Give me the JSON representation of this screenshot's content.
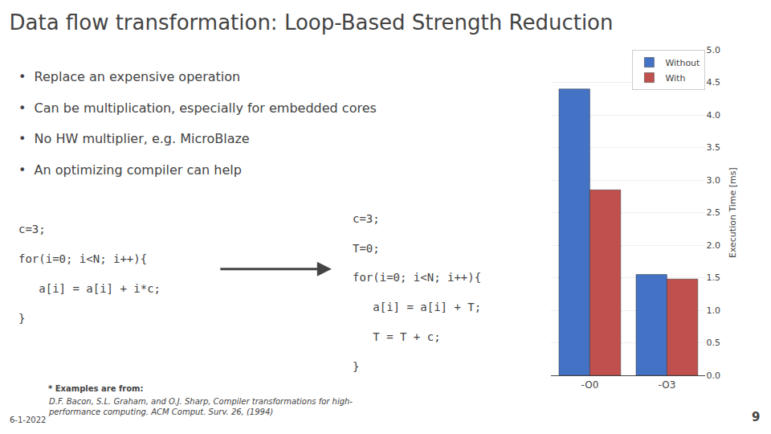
{
  "chart_data": {
    "type": "bar",
    "title": "Data flow transformation: Loop-Based Strength Reduction",
    "categories": [
      "-O0",
      "-O3"
    ],
    "series": [
      {
        "name": "Without",
        "color": "#4472C4",
        "values": [
          4.4,
          1.55
        ]
      },
      {
        "name": "With",
        "color": "#C0504D",
        "values": [
          2.85,
          1.48
        ]
      }
    ],
    "ylabel": "Execution Time [ms]",
    "ylim": [
      0,
      5
    ],
    "yticks": [
      {
        "value": 0,
        "label": "0.0"
      },
      0.5,
      {
        "value": 1,
        "label": "1.0"
      },
      1.5,
      {
        "value": 2,
        "label": "2.0"
      },
      2.5,
      {
        "value": 3,
        "label": "3.0"
      },
      3.5,
      {
        "value": 4,
        "label": "4.0"
      },
      4.5,
      {
        "value": 5,
        "label": "5.0"
      }
    ],
    "grid": true,
    "legend": "upper right",
    "annotations": [
      "•  Replace an expensive operation",
      "•  Can be multiplication, especially for embedded cores",
      "•  No HW multiplier, e.g. MicroBlaze",
      "•  An optimizing compiler can help",
      "c=3;",
      "for(i=0; i<N; i++){",
      "   a[i] = a[i] + i*c;",
      "}",
      "c=3;",
      "T=0;",
      "for(i=0; i<N; i++){",
      "   a[i] = a[i] + T;",
      "   T = T + c;",
      "}",
      "* Examples are from:",
      "D.F. Bacon, S.L. Graham, and O.J. Sharp, Compiler transformations for high-\nperformance computing. ACM Comput. Surv. 26, (1994)",
      "6-1-2022",
      "9"
    ]
  }
}
